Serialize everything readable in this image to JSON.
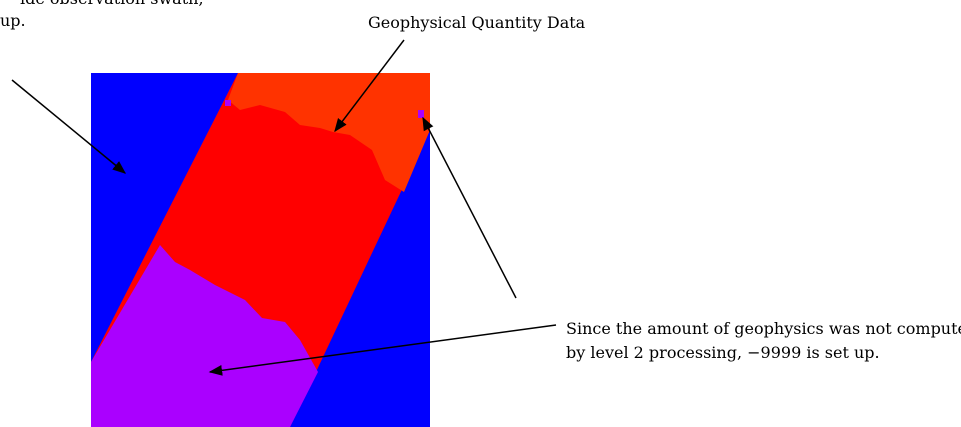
{
  "annotations": {
    "swath": {
      "lines": [
        "ide observation swath,",
        "up."
      ]
    },
    "geophysical": {
      "label": "Geophysical Quantity Data"
    },
    "missing": {
      "lines": [
        "Since the amount of geophysics was not computed",
        "by level 2 processing, −9999 is set up."
      ]
    }
  }
}
